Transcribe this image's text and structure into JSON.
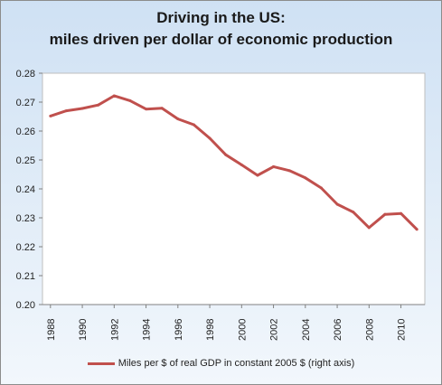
{
  "chart_data": {
    "type": "line",
    "title": "Driving in the US:",
    "subtitle": "miles driven per dollar of economic production",
    "xlabel": "",
    "ylabel": "",
    "ylim": [
      0.2,
      0.28
    ],
    "yticks": [
      "0.20",
      "0.21",
      "0.22",
      "0.23",
      "0.24",
      "0.25",
      "0.26",
      "0.27",
      "0.28"
    ],
    "xticks": [
      "1988",
      "1990",
      "1992",
      "1994",
      "1996",
      "1998",
      "2000",
      "2002",
      "2004",
      "2006",
      "2008",
      "2010"
    ],
    "grid": false,
    "legend_position": "bottom",
    "colors": {
      "line": "#c0504d",
      "plot_bg": "#ffffff"
    },
    "series": [
      {
        "name": "Miles per $ of real GDP in constant 2005 $ (right axis)",
        "x": [
          1988,
          1989,
          1990,
          1991,
          1992,
          1993,
          1994,
          1995,
          1996,
          1997,
          1998,
          1999,
          2000,
          2001,
          2002,
          2003,
          2004,
          2005,
          2006,
          2007,
          2008,
          2009,
          2010,
          2011
        ],
        "values": [
          0.2652,
          0.267,
          0.2678,
          0.269,
          0.2722,
          0.2705,
          0.2676,
          0.2679,
          0.2642,
          0.2622,
          0.2575,
          0.2518,
          0.2483,
          0.2447,
          0.2477,
          0.2463,
          0.2438,
          0.2403,
          0.2347,
          0.232,
          0.2266,
          0.2312,
          0.2315,
          0.226
        ]
      }
    ]
  }
}
